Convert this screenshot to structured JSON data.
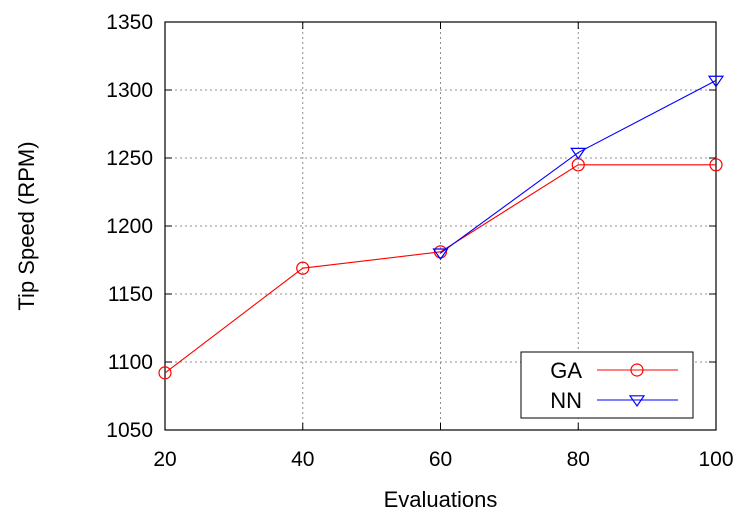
{
  "chart_data": {
    "type": "line",
    "xlabel": "Evaluations",
    "ylabel": "Tip Speed (RPM)",
    "xlim": [
      20,
      100
    ],
    "ylim": [
      1050,
      1350
    ],
    "xticks": [
      20,
      40,
      60,
      80,
      100
    ],
    "yticks": [
      1050,
      1100,
      1150,
      1200,
      1250,
      1300,
      1350
    ],
    "grid": true,
    "legend_position": "bottom-right",
    "series": [
      {
        "name": "GA",
        "color": "#ff0000",
        "marker": "circle",
        "x": [
          20,
          40,
          60,
          80,
          100
        ],
        "y": [
          1092,
          1169,
          1181,
          1245,
          1245
        ]
      },
      {
        "name": "NN",
        "color": "#0000ff",
        "marker": "triangle-down",
        "x": [
          60,
          80,
          100
        ],
        "y": [
          1180,
          1254,
          1307
        ]
      }
    ]
  }
}
